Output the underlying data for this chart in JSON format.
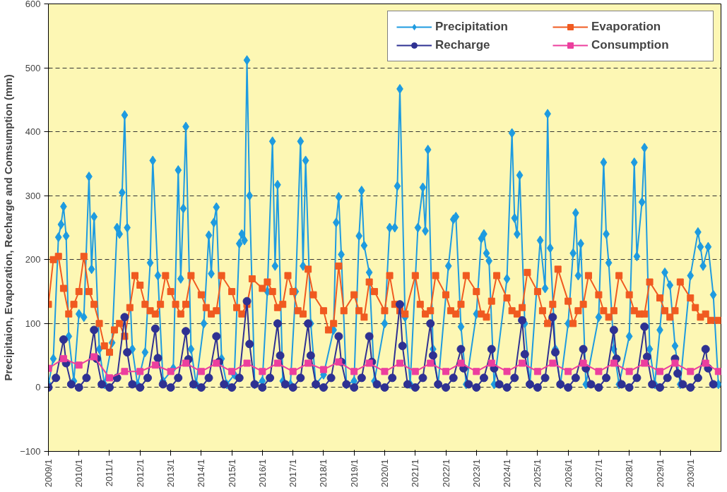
{
  "chart_data": {
    "type": "line",
    "ylabel": "Precipitaion, Evaporation, Recharge and Comsumption (mm)",
    "xlim": [
      "2009-01",
      "2031-01"
    ],
    "ylim": [
      -100,
      600
    ],
    "yticks": [
      -100,
      0,
      100,
      200,
      300,
      400,
      500,
      600
    ],
    "xticks": [
      {
        "value": "2009-01",
        "label": "2009/1"
      },
      {
        "value": "2010-01",
        "label": "2010/1"
      },
      {
        "value": "2011-01",
        "label": "2011/1"
      },
      {
        "value": "2012-01",
        "label": "2012/1"
      },
      {
        "value": "2013-01",
        "label": "2013/1"
      },
      {
        "value": "2014-01",
        "label": "2014/1"
      },
      {
        "value": "2015-01",
        "label": "2015/1"
      },
      {
        "value": "2016-01",
        "label": "2016/1"
      },
      {
        "value": "2017-01",
        "label": "2017/1"
      },
      {
        "value": "2018-01",
        "label": "2018/1"
      },
      {
        "value": "2019-01",
        "label": "2019/1"
      },
      {
        "value": "2020-01",
        "label": "2020/1"
      },
      {
        "value": "2021-01",
        "label": "2021/1"
      },
      {
        "value": "2022-01",
        "label": "2022/1"
      },
      {
        "value": "2023-01",
        "label": "2023/1"
      },
      {
        "value": "2024-01",
        "label": "2024/1"
      },
      {
        "value": "2025-01",
        "label": "2025/1"
      },
      {
        "value": "2026-01",
        "label": "2026/1"
      },
      {
        "value": "2027-01",
        "label": "2027/1"
      },
      {
        "value": "2028-01",
        "label": "2028/1"
      },
      {
        "value": "2029-01",
        "label": "2029/1"
      },
      {
        "value": "2030-01",
        "label": "2030/1"
      }
    ],
    "grid": "y",
    "legend": "top right",
    "line_style": "solid",
    "series": [
      {
        "name": "Precipitation",
        "color": "#1e9be0",
        "marker": "diamond",
        "x": [
          "2009-01",
          "2009-03",
          "2009-05",
          "2009-06",
          "2009-07",
          "2009-08",
          "2009-09",
          "2009-11",
          "2010-01",
          "2010-03",
          "2010-05",
          "2010-06",
          "2010-07",
          "2010-09",
          "2010-11",
          "2011-02",
          "2011-04",
          "2011-05",
          "2011-06",
          "2011-07",
          "2011-08",
          "2011-10",
          "2011-12",
          "2012-03",
          "2012-05",
          "2012-06",
          "2012-08",
          "2012-10",
          "2013-02",
          "2013-04",
          "2013-05",
          "2013-06",
          "2013-07",
          "2013-09",
          "2013-11",
          "2014-02",
          "2014-04",
          "2014-05",
          "2014-06",
          "2014-07",
          "2014-09",
          "2014-11",
          "2015-02",
          "2015-04",
          "2015-05",
          "2015-06",
          "2015-07",
          "2015-08",
          "2015-10",
          "2016-01",
          "2016-03",
          "2016-05",
          "2016-06",
          "2016-07",
          "2016-09",
          "2016-12",
          "2017-02",
          "2017-04",
          "2017-05",
          "2017-06",
          "2017-08",
          "2017-10",
          "2018-01",
          "2018-05",
          "2018-06",
          "2018-07",
          "2018-08",
          "2018-10",
          "2019-01",
          "2019-03",
          "2019-04",
          "2019-05",
          "2019-07",
          "2019-09",
          "2020-01",
          "2020-03",
          "2020-05",
          "2020-06",
          "2020-07",
          "2020-09",
          "2020-11",
          "2021-02",
          "2021-04",
          "2021-05",
          "2021-06",
          "2021-08",
          "2021-10",
          "2022-02",
          "2022-04",
          "2022-05",
          "2022-07",
          "2022-09",
          "2023-01",
          "2023-03",
          "2023-04",
          "2023-05",
          "2023-06",
          "2023-08",
          "2024-01",
          "2024-03",
          "2024-04",
          "2024-05",
          "2024-06",
          "2024-08",
          "2024-10",
          "2025-02",
          "2025-04",
          "2025-05",
          "2025-06",
          "2025-08",
          "2025-10",
          "2026-01",
          "2026-03",
          "2026-04",
          "2026-05",
          "2026-06",
          "2026-08",
          "2027-01",
          "2027-03",
          "2027-04",
          "2027-05",
          "2027-07",
          "2027-09",
          "2028-01",
          "2028-03",
          "2028-04",
          "2028-06",
          "2028-07",
          "2028-09",
          "2028-11",
          "2029-01",
          "2029-03",
          "2029-05",
          "2029-07",
          "2029-09",
          "2030-01",
          "2030-04",
          "2030-05",
          "2030-06",
          "2030-08",
          "2030-10",
          "2030-12"
        ],
        "values": [
          5,
          45,
          235,
          255,
          283,
          237,
          80,
          10,
          115,
          110,
          330,
          185,
          267,
          60,
          5,
          70,
          250,
          240,
          305,
          426,
          250,
          60,
          5,
          55,
          195,
          355,
          175,
          10,
          30,
          340,
          170,
          280,
          408,
          60,
          5,
          100,
          238,
          178,
          258,
          282,
          45,
          5,
          20,
          225,
          240,
          230,
          512,
          300,
          5,
          10,
          150,
          385,
          190,
          317,
          10,
          5,
          150,
          385,
          190,
          355,
          100,
          5,
          20,
          90,
          258,
          298,
          208,
          5,
          10,
          237,
          308,
          222,
          180,
          10,
          100,
          250,
          250,
          315,
          467,
          110,
          5,
          250,
          313,
          245,
          372,
          60,
          5,
          190,
          263,
          267,
          95,
          5,
          115,
          233,
          240,
          210,
          198,
          5,
          170,
          398,
          265,
          240,
          332,
          100,
          5,
          230,
          155,
          428,
          218,
          60,
          5,
          100,
          210,
          273,
          175,
          225,
          5,
          110,
          352,
          240,
          195,
          60,
          5,
          80,
          352,
          205,
          290,
          375,
          60,
          5,
          90,
          180,
          160,
          65,
          5,
          175,
          243,
          220,
          190,
          220,
          145,
          5
        ]
      },
      {
        "name": "Evaporation",
        "color": "#f05a20",
        "marker": "square",
        "x": [
          "2009-01",
          "2009-03",
          "2009-05",
          "2009-07",
          "2009-09",
          "2009-11",
          "2010-01",
          "2010-03",
          "2010-05",
          "2010-07",
          "2010-09",
          "2010-11",
          "2011-01",
          "2011-03",
          "2011-05",
          "2011-07",
          "2011-09",
          "2011-11",
          "2012-01",
          "2012-03",
          "2012-05",
          "2012-07",
          "2012-09",
          "2012-11",
          "2013-01",
          "2013-03",
          "2013-05",
          "2013-07",
          "2013-09",
          "2014-01",
          "2014-03",
          "2014-05",
          "2014-07",
          "2014-09",
          "2015-01",
          "2015-03",
          "2015-05",
          "2015-07",
          "2015-09",
          "2016-01",
          "2016-03",
          "2016-05",
          "2016-07",
          "2016-09",
          "2016-11",
          "2017-01",
          "2017-03",
          "2017-05",
          "2017-07",
          "2017-09",
          "2018-01",
          "2018-03",
          "2018-05",
          "2018-07",
          "2018-09",
          "2019-01",
          "2019-03",
          "2019-05",
          "2019-07",
          "2019-09",
          "2020-01",
          "2020-03",
          "2020-05",
          "2020-07",
          "2020-09",
          "2021-01",
          "2021-03",
          "2021-05",
          "2021-07",
          "2021-09",
          "2022-01",
          "2022-03",
          "2022-05",
          "2022-07",
          "2022-09",
          "2023-01",
          "2023-03",
          "2023-05",
          "2023-07",
          "2023-09",
          "2024-01",
          "2024-03",
          "2024-05",
          "2024-07",
          "2024-09",
          "2025-01",
          "2025-03",
          "2025-05",
          "2025-07",
          "2025-09",
          "2026-01",
          "2026-03",
          "2026-05",
          "2026-07",
          "2026-09",
          "2027-01",
          "2027-03",
          "2027-05",
          "2027-07",
          "2027-09",
          "2028-01",
          "2028-03",
          "2028-05",
          "2028-07",
          "2028-09",
          "2029-01",
          "2029-03",
          "2029-05",
          "2029-07",
          "2029-09",
          "2030-01",
          "2030-03",
          "2030-05",
          "2030-07",
          "2030-09",
          "2030-12"
        ],
        "values": [
          130,
          200,
          205,
          155,
          115,
          130,
          150,
          205,
          150,
          130,
          100,
          65,
          55,
          90,
          100,
          80,
          125,
          175,
          160,
          130,
          120,
          115,
          130,
          175,
          150,
          130,
          115,
          130,
          175,
          145,
          125,
          115,
          120,
          175,
          150,
          125,
          115,
          130,
          170,
          155,
          165,
          150,
          125,
          130,
          175,
          150,
          120,
          115,
          185,
          145,
          120,
          90,
          100,
          190,
          120,
          145,
          120,
          110,
          165,
          150,
          120,
          175,
          130,
          120,
          115,
          175,
          130,
          115,
          120,
          175,
          145,
          120,
          115,
          130,
          175,
          150,
          115,
          110,
          135,
          175,
          140,
          120,
          115,
          125,
          180,
          150,
          120,
          100,
          130,
          185,
          135,
          100,
          120,
          130,
          175,
          145,
          120,
          110,
          120,
          175,
          145,
          120,
          115,
          115,
          165,
          140,
          120,
          110,
          120,
          165,
          140,
          125,
          110,
          115,
          105,
          105
        ]
      },
      {
        "name": "Recharge",
        "color": "#2e3192",
        "marker": "circle",
        "x": [
          "2009-01",
          "2009-04",
          "2009-07",
          "2009-08",
          "2009-10",
          "2010-01",
          "2010-04",
          "2010-07",
          "2010-08",
          "2010-10",
          "2011-01",
          "2011-04",
          "2011-07",
          "2011-08",
          "2011-10",
          "2012-01",
          "2012-04",
          "2012-07",
          "2012-08",
          "2012-10",
          "2013-01",
          "2013-04",
          "2013-07",
          "2013-08",
          "2013-10",
          "2014-01",
          "2014-04",
          "2014-07",
          "2014-08",
          "2014-10",
          "2015-01",
          "2015-04",
          "2015-07",
          "2015-08",
          "2015-10",
          "2016-01",
          "2016-04",
          "2016-07",
          "2016-08",
          "2016-10",
          "2017-01",
          "2017-04",
          "2017-07",
          "2017-08",
          "2017-10",
          "2018-01",
          "2018-04",
          "2018-07",
          "2018-08",
          "2018-10",
          "2019-01",
          "2019-04",
          "2019-07",
          "2019-08",
          "2019-10",
          "2020-01",
          "2020-04",
          "2020-07",
          "2020-08",
          "2020-10",
          "2021-01",
          "2021-04",
          "2021-07",
          "2021-08",
          "2021-10",
          "2022-01",
          "2022-04",
          "2022-07",
          "2022-08",
          "2022-10",
          "2023-01",
          "2023-04",
          "2023-07",
          "2023-08",
          "2023-10",
          "2024-01",
          "2024-04",
          "2024-07",
          "2024-08",
          "2024-10",
          "2025-01",
          "2025-04",
          "2025-07",
          "2025-08",
          "2025-10",
          "2026-01",
          "2026-04",
          "2026-07",
          "2026-08",
          "2026-10",
          "2027-01",
          "2027-04",
          "2027-07",
          "2027-08",
          "2027-10",
          "2028-01",
          "2028-04",
          "2028-07",
          "2028-08",
          "2028-10",
          "2029-01",
          "2029-04",
          "2029-07",
          "2029-08",
          "2029-10",
          "2030-01",
          "2030-04",
          "2030-07",
          "2030-08",
          "2030-10"
        ],
        "values": [
          0,
          15,
          75,
          38,
          5,
          0,
          15,
          90,
          45,
          5,
          0,
          15,
          110,
          55,
          5,
          0,
          15,
          92,
          46,
          5,
          0,
          15,
          88,
          44,
          5,
          0,
          15,
          80,
          40,
          5,
          0,
          15,
          135,
          68,
          5,
          0,
          15,
          100,
          50,
          5,
          0,
          15,
          100,
          50,
          5,
          0,
          15,
          80,
          40,
          5,
          0,
          15,
          80,
          40,
          5,
          0,
          15,
          130,
          65,
          5,
          0,
          15,
          100,
          50,
          5,
          0,
          15,
          60,
          30,
          5,
          0,
          15,
          60,
          30,
          5,
          0,
          15,
          105,
          52,
          5,
          0,
          15,
          110,
          55,
          5,
          0,
          15,
          60,
          30,
          5,
          0,
          15,
          90,
          45,
          5,
          0,
          15,
          95,
          48,
          5,
          0,
          15,
          45,
          22,
          5,
          0,
          15,
          60,
          30,
          5
        ]
      },
      {
        "name": "Consumption",
        "color": "#ec3f9e",
        "marker": "square",
        "x": [
          "2009-01",
          "2009-07",
          "2010-01",
          "2010-07",
          "2011-01",
          "2011-07",
          "2012-01",
          "2012-07",
          "2013-01",
          "2013-07",
          "2014-01",
          "2014-07",
          "2015-01",
          "2015-07",
          "2016-01",
          "2016-07",
          "2017-01",
          "2017-07",
          "2018-01",
          "2018-07",
          "2019-01",
          "2019-07",
          "2020-01",
          "2020-07",
          "2021-01",
          "2021-07",
          "2022-01",
          "2022-07",
          "2023-01",
          "2023-07",
          "2024-01",
          "2024-07",
          "2025-01",
          "2025-07",
          "2026-01",
          "2026-07",
          "2027-01",
          "2027-07",
          "2028-01",
          "2028-07",
          "2029-01",
          "2029-07",
          "2030-01",
          "2030-07",
          "2030-12"
        ],
        "values": [
          30,
          45,
          35,
          48,
          15,
          25,
          25,
          35,
          25,
          38,
          25,
          38,
          25,
          38,
          25,
          38,
          25,
          38,
          28,
          40,
          25,
          38,
          25,
          38,
          25,
          38,
          25,
          38,
          25,
          38,
          25,
          38,
          25,
          38,
          25,
          38,
          25,
          38,
          25,
          38,
          25,
          38,
          25,
          38,
          25
        ]
      }
    ]
  }
}
